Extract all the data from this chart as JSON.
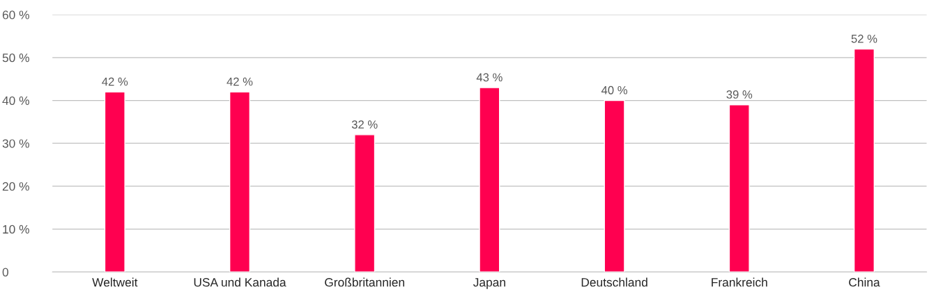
{
  "chart_data": {
    "type": "bar",
    "categories": [
      "Weltweit",
      "USA und Kanada",
      "Großbritannien",
      "Japan",
      "Deutschland",
      "Frankreich",
      "China"
    ],
    "values": [
      42,
      42,
      32,
      43,
      40,
      39,
      52
    ],
    "value_labels": [
      "42 %",
      "42 %",
      "32 %",
      "43 %",
      "40 %",
      "39 %",
      "52 %"
    ],
    "color": "#ff0050",
    "ylim": [
      0,
      60
    ],
    "yticks": [
      0,
      {
        "value": 10,
        "label": "10 %"
      },
      {
        "value": 20,
        "label": "20 %"
      },
      {
        "value": 30,
        "label": "30 %"
      },
      {
        "value": 40,
        "label": "40 %"
      },
      {
        "value": 50,
        "label": "50 %"
      },
      {
        "value": 60,
        "label": "60 %"
      }
    ],
    "grid": "y"
  }
}
